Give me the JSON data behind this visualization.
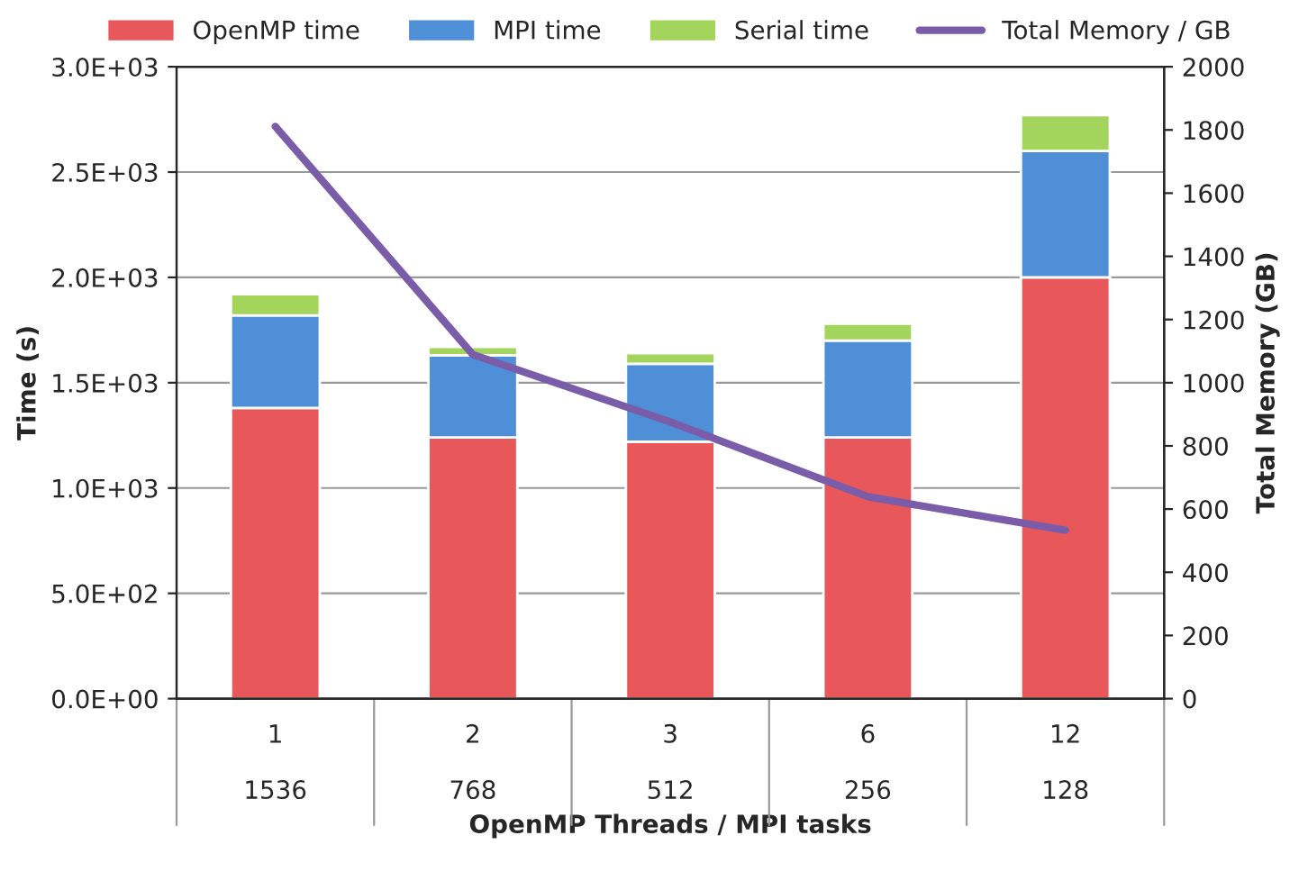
{
  "chart_data": {
    "type": "bar",
    "stacked": true,
    "xlabel": "OpenMP Threads / MPI tasks",
    "ylabel": "Time (s)",
    "y2label": "Total Memory (GB)",
    "categories": [
      "1\n\n1536",
      "2\n\n768",
      "3\n\n512",
      "6\n\n256",
      "12\n\n128"
    ],
    "series": [
      {
        "name": "OpenMP time",
        "color": "#e8585a",
        "values": [
          1380,
          1240,
          1220,
          1240,
          2000
        ]
      },
      {
        "name": "MPI time",
        "color": "#4f8fd8",
        "values": [
          440,
          390,
          370,
          460,
          600
        ]
      },
      {
        "name": "Serial time",
        "color": "#a3d45c",
        "values": [
          100,
          40,
          50,
          80,
          170
        ]
      },
      {
        "name": "Total Memory / GB",
        "type": "line",
        "axis": "y2",
        "color": "#7a5ca8",
        "values": [
          1811,
          1089,
          876,
          639,
          533
        ]
      }
    ],
    "ylim": [
      0,
      3000
    ],
    "yticks": [
      {
        "value": 0,
        "label": "0.0E+00"
      },
      {
        "value": 500,
        "label": "5.0E+02"
      },
      {
        "value": 1000,
        "label": "1.0E+03"
      },
      {
        "value": 1500,
        "label": "1.5E+03"
      },
      {
        "value": 2000,
        "label": "2.0E+03"
      },
      {
        "value": 2500,
        "label": "2.5E+03"
      },
      {
        "value": 3000,
        "label": "3.0E+03"
      }
    ],
    "y2lim": [
      0,
      2000
    ],
    "y2ticks": [
      0,
      200,
      400,
      600,
      800,
      1000,
      1200,
      1400,
      1600,
      1800,
      2000
    ],
    "grid": "y",
    "legend": "top",
    "marker": "none",
    "line_style": "solid"
  }
}
